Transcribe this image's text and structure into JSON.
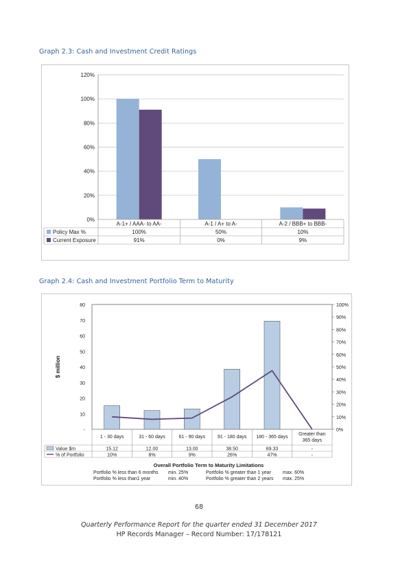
{
  "graph1": {
    "caption": "Graph 2.3:  Cash and Investment Credit Ratings",
    "chart_data": {
      "type": "bar",
      "categories": [
        "A-1+ / AAA- to AA-",
        "A-1 / A+ to A-",
        "A-2 / BBB+ to BBB-"
      ],
      "series": [
        {
          "name": "Policy Max %",
          "values": [
            100,
            50,
            10
          ],
          "labels": [
            "100%",
            "50%",
            "10%"
          ],
          "color": "#95b3d7"
        },
        {
          "name": "Current Exposure",
          "values": [
            91,
            0,
            9
          ],
          "labels": [
            "91%",
            "0%",
            "9%"
          ],
          "color": "#604a7b"
        }
      ],
      "ylim": [
        0,
        120
      ],
      "yticks": [
        "0%",
        "20%",
        "40%",
        "60%",
        "80%",
        "100%",
        "120%"
      ],
      "grid": true,
      "legend": "data-table"
    }
  },
  "graph2": {
    "caption": "Graph 2.4:  Cash and Investment Portfolio Term to Maturity",
    "chart_data": {
      "type": "bar",
      "categories": [
        "1 - 30 days",
        "31 - 60 days",
        "61 - 90 days",
        "91 - 180 days",
        "180 - 365 days",
        "Greater than 365 days"
      ],
      "series": [
        {
          "name": "Value $m",
          "values": [
            15.12,
            12.0,
            13.0,
            38.5,
            69.33,
            0
          ],
          "labels": [
            "15.12",
            "12.00",
            "13.00",
            "38.50",
            "69.33",
            "-"
          ],
          "color": "#b8cce4",
          "kind": "bar"
        },
        {
          "name": "% of Portfolio",
          "values": [
            10,
            8,
            9,
            26,
            47,
            0
          ],
          "labels": [
            "10%",
            "8%",
            "9%",
            "26%",
            "47%",
            "-"
          ],
          "color": "#604a7b",
          "kind": "line"
        }
      ],
      "ylabel": "$ million",
      "ylim": [
        0,
        80
      ],
      "yticks": [
        "-",
        "10",
        "20",
        "30",
        "40",
        "50",
        "60",
        "70",
        "80"
      ],
      "y2lim": [
        0,
        100
      ],
      "y2ticks": [
        "0%",
        "10%",
        "20%",
        "30%",
        "40%",
        "50%",
        "60%",
        "70%",
        "80%",
        "90%",
        "100%"
      ],
      "grid": false,
      "legend": "data-table"
    },
    "limits": {
      "title": "Overall Portfolio Term to Maturity Limitations",
      "rows": [
        {
          "left": "Portfolio  % less than 6 months",
          "left_val": "min. 25%",
          "right": "Portfolio  % greater than 1 year",
          "right_val": "max. 60%"
        },
        {
          "left": "Portfolio  % less than1 year",
          "left_val": "min. 40%",
          "right": "Portfolio  % greater than 2 years",
          "right_val": "max. 25%"
        }
      ]
    }
  },
  "footer": {
    "page_number": "68",
    "line1": "Quarterly Performance Report for the quarter ended 31 December 2017",
    "line2": "HP Records Manager – Record Number: 17/178121"
  }
}
